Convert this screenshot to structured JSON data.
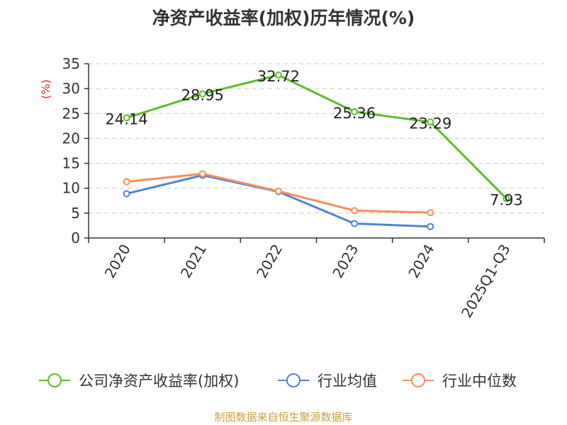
{
  "chart_data": {
    "type": "line",
    "title": "净资产收益率(加权)历年情况(%)",
    "ylabel": "(%)",
    "categories": [
      "2020",
      "2021",
      "2022",
      "2023",
      "2024",
      "2025Q1-Q3"
    ],
    "ylim": [
      0,
      35
    ],
    "yticks": [
      0,
      5,
      10,
      15,
      20,
      25,
      30,
      35
    ],
    "grid": true,
    "legend_position": "bottom",
    "series": [
      {
        "name": "公司净资产收益率(加权)",
        "color": "#5cbd2a",
        "labeled": true,
        "values": [
          24.14,
          28.95,
          32.72,
          25.36,
          23.29,
          7.93
        ]
      },
      {
        "name": "行业均值",
        "color": "#5083d6",
        "labeled": false,
        "values": [
          8.9,
          12.6,
          9.3,
          2.9,
          2.3,
          null
        ]
      },
      {
        "name": "行业中位数",
        "color": "#f68e5c",
        "labeled": false,
        "values": [
          11.3,
          12.9,
          9.4,
          5.5,
          5.1,
          null
        ]
      }
    ]
  },
  "source_text": "制图数据来自恒生聚源数据库"
}
